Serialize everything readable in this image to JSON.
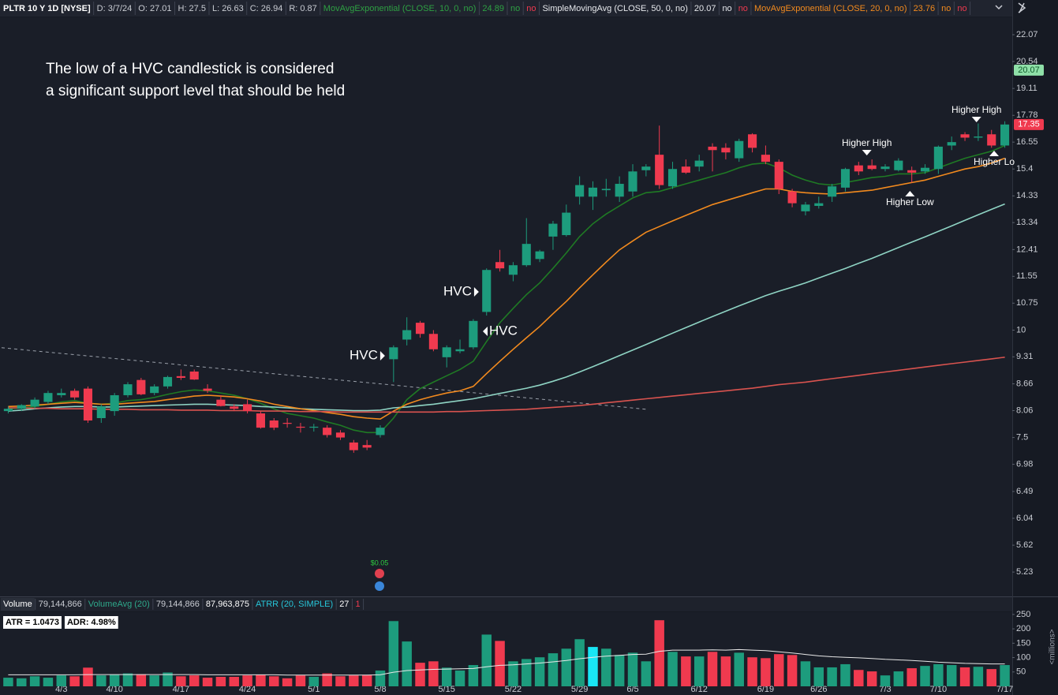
{
  "header": {
    "symbol": "PLTR 10 Y 1D [NYSE]",
    "fields": [
      "D: 3/7/24",
      "O: 27.01",
      "H: 27.5",
      "L: 26.63",
      "C: 26.94",
      "R: 0.87"
    ]
  },
  "chart_data": [
    {
      "type": "candlestick",
      "categories": [
        null,
        null,
        null,
        null,
        "4/3",
        null,
        null,
        null,
        "4/10",
        null,
        null,
        null,
        null,
        "4/17",
        null,
        null,
        null,
        null,
        "4/24",
        null,
        null,
        null,
        null,
        "5/1",
        null,
        null,
        null,
        null,
        "5/8",
        null,
        null,
        null,
        null,
        "5/15",
        null,
        null,
        null,
        null,
        "5/22",
        null,
        null,
        null,
        null,
        "5/29",
        null,
        null,
        null,
        "6/5",
        null,
        null,
        null,
        null,
        "6/12",
        null,
        null,
        null,
        null,
        "6/19",
        null,
        null,
        null,
        "6/26",
        null,
        null,
        null,
        null,
        "7/3",
        null,
        null,
        null,
        "7/10",
        null,
        null,
        null,
        null,
        "7/17"
      ],
      "open": [
        8.05,
        8.1,
        8.15,
        8.25,
        8.4,
        8.5,
        8.55,
        7.9,
        8.05,
        8.4,
        8.75,
        8.45,
        8.6,
        8.84,
        8.95,
        8.55,
        8.3,
        8.15,
        8.2,
        8.0,
        7.85,
        7.8,
        7.72,
        7.7,
        7.7,
        7.6,
        7.4,
        7.35,
        7.55,
        9.25,
        9.75,
        10.2,
        9.9,
        9.3,
        9.45,
        9.55,
        10.5,
        12.0,
        11.6,
        11.9,
        12.1,
        12.85,
        12.9,
        14.3,
        14.3,
        14.55,
        14.3,
        14.5,
        15.35,
        16.0,
        14.7,
        15.5,
        15.5,
        16.35,
        16.3,
        15.85,
        16.9,
        16.0,
        15.7,
        14.5,
        13.75,
        13.95,
        14.3,
        14.65,
        15.55,
        15.55,
        15.4,
        15.35,
        15.35,
        15.3,
        15.4,
        16.4,
        16.9,
        16.75,
        16.9,
        16.4
      ],
      "high": [
        8.15,
        8.2,
        8.35,
        8.5,
        8.55,
        8.55,
        8.6,
        8.2,
        8.45,
        8.7,
        8.8,
        8.65,
        8.85,
        9.0,
        9.0,
        8.65,
        8.4,
        8.2,
        8.3,
        8.05,
        7.9,
        7.9,
        7.8,
        7.78,
        7.75,
        7.65,
        7.45,
        7.45,
        7.75,
        9.6,
        10.35,
        10.25,
        10.0,
        9.6,
        9.75,
        10.3,
        11.8,
        12.4,
        12.0,
        13.5,
        12.4,
        13.4,
        14.0,
        15.1,
        14.9,
        15.0,
        15.1,
        15.6,
        15.6,
        17.3,
        15.7,
        15.8,
        16.0,
        16.5,
        16.5,
        16.7,
        16.95,
        16.4,
        15.8,
        14.6,
        14.1,
        14.3,
        14.8,
        15.45,
        15.7,
        15.8,
        15.6,
        15.85,
        15.5,
        15.6,
        16.4,
        16.8,
        17.0,
        17.4,
        17.1,
        17.5
      ],
      "low": [
        8.0,
        8.05,
        8.1,
        8.2,
        8.35,
        8.3,
        7.8,
        7.8,
        7.95,
        8.35,
        8.4,
        8.4,
        8.55,
        8.75,
        8.75,
        8.45,
        8.15,
        8.05,
        8.0,
        7.68,
        7.65,
        7.7,
        7.6,
        7.62,
        7.5,
        7.45,
        7.2,
        7.25,
        7.5,
        8.7,
        9.6,
        9.8,
        9.45,
        9.05,
        9.4,
        9.5,
        10.4,
        11.7,
        11.4,
        11.85,
        12.0,
        12.4,
        12.85,
        14.0,
        13.8,
        14.3,
        14.1,
        14.3,
        15.1,
        14.6,
        14.6,
        15.2,
        15.3,
        15.3,
        15.8,
        15.7,
        16.1,
        15.6,
        14.4,
        13.9,
        13.6,
        13.85,
        14.1,
        14.5,
        15.15,
        15.35,
        15.3,
        15.3,
        14.85,
        15.2,
        15.2,
        16.2,
        16.6,
        16.6,
        16.3,
        16.3
      ],
      "close": [
        8.1,
        8.18,
        8.3,
        8.45,
        8.45,
        8.35,
        7.85,
        8.15,
        8.4,
        8.65,
        8.42,
        8.6,
        8.82,
        8.8,
        8.76,
        8.5,
        8.16,
        8.1,
        8.05,
        7.7,
        7.7,
        7.78,
        7.7,
        7.72,
        7.55,
        7.5,
        7.25,
        7.3,
        7.7,
        9.55,
        10.0,
        9.9,
        9.5,
        9.55,
        9.5,
        10.25,
        11.75,
        11.8,
        11.9,
        12.6,
        12.35,
        13.3,
        13.7,
        14.75,
        14.65,
        14.6,
        14.8,
        15.3,
        15.5,
        14.75,
        15.4,
        15.25,
        15.75,
        16.2,
        16.1,
        16.6,
        16.3,
        15.7,
        14.6,
        14.05,
        14.0,
        14.05,
        14.7,
        15.4,
        15.3,
        15.4,
        15.5,
        15.75,
        15.25,
        15.45,
        16.35,
        16.55,
        16.75,
        16.8,
        16.4,
        17.35
      ],
      "up_color": "#1d9c7d",
      "down_color": "#f03a4f",
      "log_scale": true,
      "ylim": [
        4.91,
        23.12
      ],
      "yticks": [
        5.23,
        5.62,
        6.04,
        6.49,
        6.98,
        7.5,
        8.06,
        8.66,
        9.31,
        10,
        10.75,
        11.55,
        12.41,
        13.34,
        14.33,
        15.4,
        16.55,
        17.78,
        19.11,
        20.54,
        22.07
      ],
      "series": [
        {
          "name": "MovAvgExponential (CLOSE, 10, 0, no)",
          "legend_value": "24.89",
          "flags": [
            "no",
            "no"
          ],
          "color": "#1f7a24",
          "label_color": "#2ea043",
          "values": [
            8.1,
            8.12,
            8.15,
            8.2,
            8.25,
            8.28,
            8.22,
            8.2,
            8.22,
            8.28,
            8.3,
            8.35,
            8.42,
            8.48,
            8.52,
            8.5,
            8.45,
            8.4,
            8.32,
            8.22,
            8.1,
            8.0,
            7.95,
            7.9,
            7.82,
            7.75,
            7.65,
            7.6,
            7.6,
            7.9,
            8.3,
            8.55,
            8.7,
            8.85,
            9.0,
            9.2,
            9.7,
            10.2,
            10.6,
            11.0,
            11.35,
            11.8,
            12.3,
            12.85,
            13.3,
            13.65,
            13.95,
            14.25,
            14.45,
            14.5,
            14.65,
            14.8,
            14.95,
            15.1,
            15.25,
            15.45,
            15.6,
            15.65,
            15.45,
            15.15,
            14.95,
            14.8,
            14.75,
            14.85,
            14.95,
            15.05,
            15.1,
            15.2,
            15.2,
            15.25,
            15.45,
            15.65,
            15.85,
            16.0,
            16.15,
            16.4
          ]
        },
        {
          "name": "SimpleMovingAvg (CLOSE, 50, 0, no)",
          "legend_value": "20.07",
          "flags": [
            "no",
            "no"
          ],
          "color": "#8fd4c4",
          "label_color": "#e6e8ec",
          "values": [
            8.05,
            8.07,
            8.1,
            8.12,
            8.14,
            8.15,
            8.15,
            8.14,
            8.14,
            8.15,
            8.16,
            8.17,
            8.18,
            8.19,
            8.2,
            8.2,
            8.19,
            8.18,
            8.17,
            8.15,
            8.14,
            8.12,
            8.1,
            8.09,
            8.08,
            8.07,
            8.06,
            8.06,
            8.07,
            8.12,
            8.14,
            8.17,
            8.2,
            8.24,
            8.28,
            8.32,
            8.38,
            8.44,
            8.5,
            8.56,
            8.63,
            8.72,
            8.82,
            8.94,
            9.07,
            9.2,
            9.34,
            9.48,
            9.62,
            9.77,
            9.92,
            10.07,
            10.22,
            10.37,
            10.52,
            10.67,
            10.82,
            10.97,
            11.1,
            11.22,
            11.35,
            11.5,
            11.65,
            11.8,
            11.96,
            12.12,
            12.3,
            12.48,
            12.66,
            12.84,
            13.03,
            13.22,
            13.42,
            13.62,
            13.82,
            14.02
          ]
        },
        {
          "name": "MovAvgExponential (CLOSE, 20, 0, no)",
          "legend_value": "23.76",
          "flags": [
            "no",
            "no"
          ],
          "color": "#f28a1e",
          "label_color": "#f28a1e",
          "values": [
            8.15,
            8.16,
            8.18,
            8.2,
            8.22,
            8.24,
            8.22,
            8.2,
            8.2,
            8.22,
            8.24,
            8.26,
            8.3,
            8.34,
            8.38,
            8.4,
            8.38,
            8.36,
            8.32,
            8.27,
            8.2,
            8.15,
            8.1,
            8.06,
            8.02,
            7.98,
            7.93,
            7.9,
            7.88,
            8.05,
            8.2,
            8.3,
            8.38,
            8.45,
            8.5,
            8.6,
            8.9,
            9.2,
            9.5,
            9.8,
            10.1,
            10.45,
            10.8,
            11.2,
            11.6,
            12.0,
            12.4,
            12.7,
            13.0,
            13.2,
            13.4,
            13.6,
            13.8,
            14.0,
            14.15,
            14.3,
            14.45,
            14.6,
            14.6,
            14.5,
            14.45,
            14.42,
            14.4,
            14.45,
            14.5,
            14.55,
            14.65,
            14.75,
            14.85,
            14.95,
            15.1,
            15.25,
            15.4,
            15.5,
            15.65,
            15.85
          ]
        },
        {
          "color": "#d9534f",
          "values": [
            8.12,
            8.12,
            8.11,
            8.11,
            8.1,
            8.1,
            8.1,
            8.09,
            8.09,
            8.09,
            8.08,
            8.08,
            8.08,
            8.07,
            8.07,
            8.07,
            8.06,
            8.06,
            8.06,
            8.05,
            8.05,
            8.05,
            8.04,
            8.04,
            8.04,
            8.03,
            8.03,
            8.03,
            8.03,
            8.03,
            8.03,
            8.03,
            8.03,
            8.04,
            8.04,
            8.05,
            8.06,
            8.07,
            8.08,
            8.09,
            8.11,
            8.13,
            8.15,
            8.17,
            8.2,
            8.23,
            8.26,
            8.29,
            8.32,
            8.35,
            8.38,
            8.41,
            8.44,
            8.47,
            8.5,
            8.53,
            8.56,
            8.6,
            8.64,
            8.67,
            8.7,
            8.74,
            8.78,
            8.82,
            8.86,
            8.9,
            8.94,
            8.98,
            9.02,
            9.06,
            9.1,
            9.14,
            9.18,
            9.22,
            9.26,
            9.3
          ]
        }
      ],
      "price_labels": [
        {
          "value": 20.07,
          "color": "#8fe0a8",
          "text_color": "#0f5a2a"
        },
        {
          "value": 17.35,
          "color": "#f03a4f",
          "text_color": "#ffffff"
        }
      ],
      "trendline": {
        "points": [
          [
            0,
            9.54
          ],
          [
            48,
            8.09
          ]
        ],
        "color": "#9aa0aa"
      },
      "annotations": {
        "note": [
          "The low of a HVC candlestick is considered",
          "a significant support level that should be held"
        ],
        "markers": [
          "HVC",
          "HVC",
          "HVC",
          "Higher High",
          "Higher High",
          "Higher Low",
          "Higher Lo"
        ],
        "event": "$0.05"
      }
    },
    {
      "type": "bar",
      "title": "Volume",
      "title_value": "79,144,866",
      "values": [
        30,
        28,
        35,
        30,
        38,
        35,
        65,
        38,
        40,
        45,
        42,
        38,
        48,
        35,
        38,
        30,
        33,
        33,
        38,
        40,
        35,
        28,
        38,
        33,
        45,
        35,
        38,
        40,
        55,
        227,
        156,
        82,
        87,
        65,
        55,
        74,
        180,
        158,
        87,
        95,
        101,
        115,
        131,
        164,
        137,
        131,
        109,
        117,
        87,
        230,
        120,
        104,
        104,
        120,
        104,
        117,
        101,
        98,
        112,
        109,
        87,
        66,
        66,
        77,
        57,
        52,
        38,
        52,
        63,
        71,
        77,
        74,
        66,
        68,
        60,
        74
      ],
      "highlight": {
        "index": 44,
        "color": "#19e6f5"
      },
      "ylim": [
        0,
        258
      ],
      "yticks": [
        50,
        100,
        150,
        200,
        250
      ],
      "axis_label": "<millions>",
      "series": [
        {
          "name": "VolumeAvg (20)",
          "legend_values": [
            "79,144,866",
            "87,963,875"
          ],
          "color": "#e8e8e8",
          "label_color": "#2ea88a",
          "values": [
            40,
            40,
            40,
            40,
            40,
            40,
            41,
            41,
            41,
            41,
            41,
            41,
            41,
            41,
            41,
            40,
            40,
            40,
            40,
            40,
            40,
            39,
            39,
            39,
            39,
            39,
            39,
            39,
            40,
            49,
            55,
            57,
            59,
            60,
            61,
            62,
            68,
            73,
            75,
            78,
            81,
            85,
            90,
            96,
            101,
            105,
            108,
            111,
            112,
            122,
            126,
            126,
            126,
            127,
            126,
            128,
            126,
            124,
            120,
            116,
            111,
            106,
            103,
            101,
            99,
            97,
            94,
            92,
            90,
            87,
            84,
            82,
            80,
            79,
            78,
            78
          ]
        }
      ],
      "extra_studies": [
        {
          "label": "ATRR (20, SIMPLE)",
          "values": [
            "27",
            "1"
          ]
        }
      ],
      "info_boxes": [
        "ATR = 1.0473",
        "ADR: 4.98%"
      ]
    }
  ]
}
